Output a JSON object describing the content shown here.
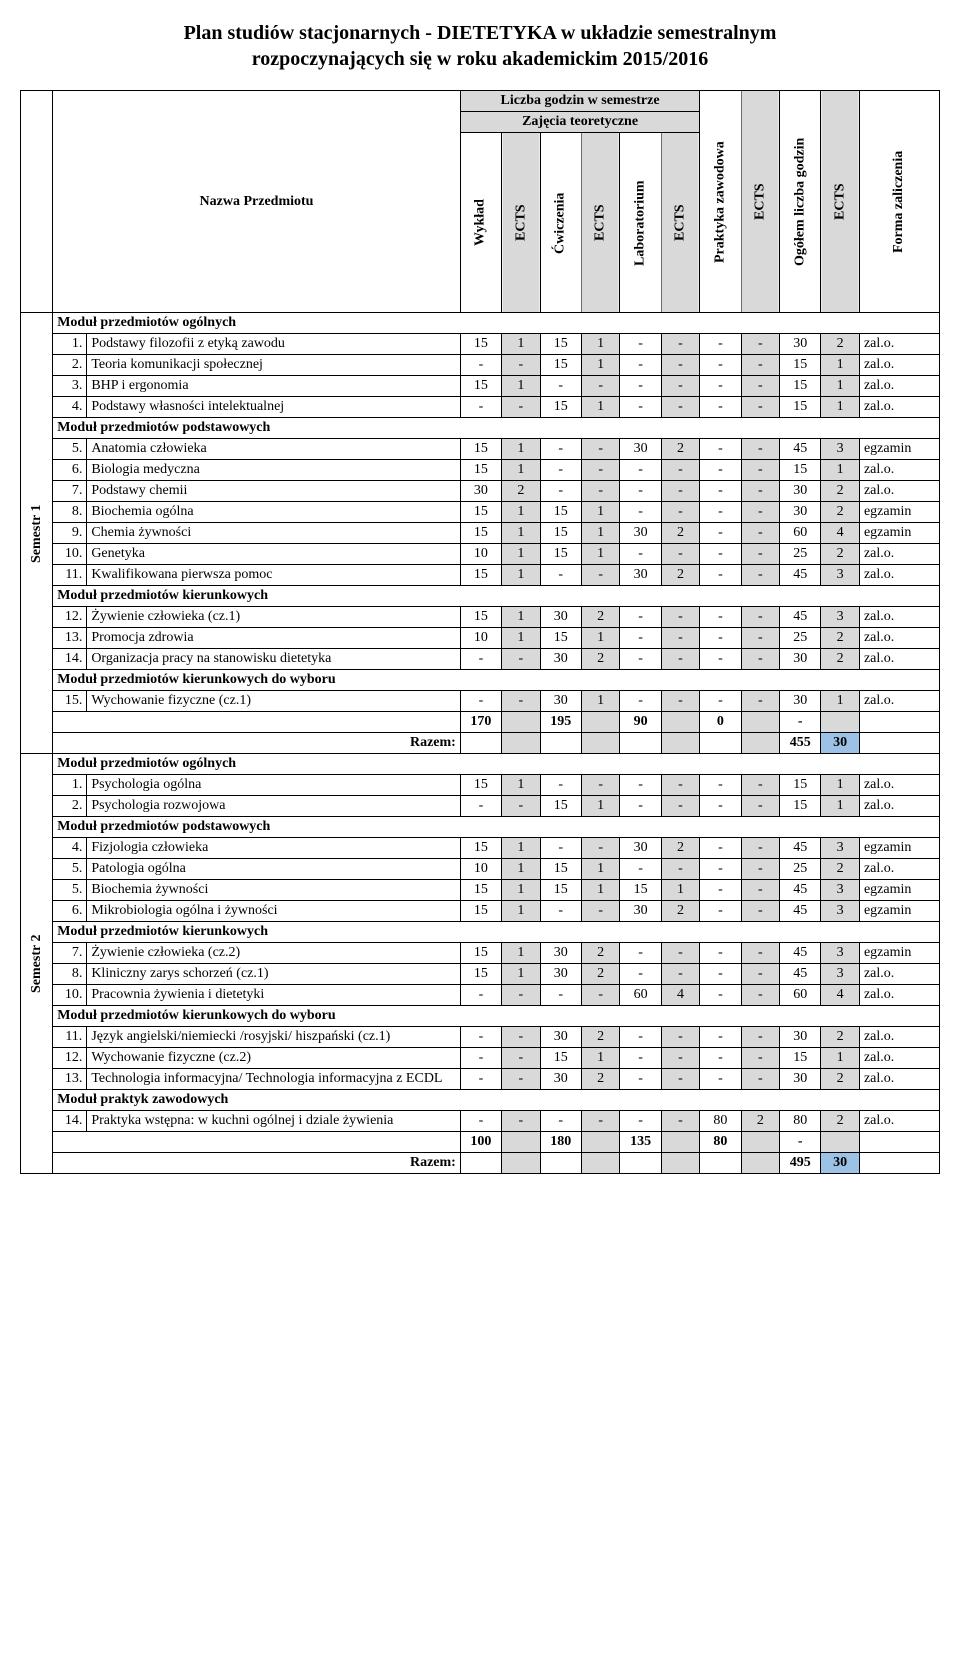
{
  "title_line1": "Plan studiów stacjonarnych - DIETETYKA w układzie semestralnym",
  "title_line2": "rozpoczynających się w roku akademickim 2015/2016",
  "headers": {
    "nazwa": "Nazwa Przedmiotu",
    "liczba_godzin": "Liczba godzin w semestrze",
    "zajecia_teor": "Zajęcia teoretyczne",
    "wyklad": "Wykład",
    "ects": "ECTS",
    "cwiczenia": "Ćwiczenia",
    "laboratorium": "Laboratorium",
    "praktyka": "Praktyka zawodowa",
    "ogolem": "Ogółem liczba godzin",
    "forma": "Forma zaliczenia"
  },
  "labels": {
    "razem": "Razem:",
    "semestr1": "Semestr 1",
    "semestr2": "Semestr 2"
  },
  "modules": {
    "ogolne": "Moduł przedmiotów ogólnych",
    "podstawowe": "Moduł przedmiotów podstawowych",
    "kierunkowe": "Moduł przedmiotów kierunkowych",
    "kier_wybor": "Moduł przedmiotów kierunkowych do wyboru",
    "praktyk": "Moduł praktyk zawodowych"
  },
  "sem1": {
    "rows": [
      {
        "n": "1.",
        "name": "Podstawy filozofii z etyką zawodu",
        "w": "15",
        "we": "1",
        "c": "15",
        "ce": "1",
        "l": "-",
        "le": "-",
        "p": "-",
        "pe": "-",
        "og": "30",
        "oe": "2",
        "f": "zal.o."
      },
      {
        "n": "2.",
        "name": "Teoria komunikacji społecznej",
        "w": "-",
        "we": "-",
        "c": "15",
        "ce": "1",
        "l": "-",
        "le": "-",
        "p": "-",
        "pe": "-",
        "og": "15",
        "oe": "1",
        "f": "zal.o."
      },
      {
        "n": "3.",
        "name": "BHP i ergonomia",
        "w": "15",
        "we": "1",
        "c": "-",
        "ce": "-",
        "l": "-",
        "le": "-",
        "p": "-",
        "pe": "-",
        "og": "15",
        "oe": "1",
        "f": "zal.o."
      },
      {
        "n": "4.",
        "name": "Podstawy własności intelektualnej",
        "w": "-",
        "we": "-",
        "c": "15",
        "ce": "1",
        "l": "-",
        "le": "-",
        "p": "-",
        "pe": "-",
        "og": "15",
        "oe": "1",
        "f": "zal.o."
      }
    ],
    "rows2": [
      {
        "n": "5.",
        "name": "Anatomia człowieka",
        "w": "15",
        "we": "1",
        "c": "-",
        "ce": "-",
        "l": "30",
        "le": "2",
        "p": "-",
        "pe": "-",
        "og": "45",
        "oe": "3",
        "f": "egzamin"
      },
      {
        "n": "6.",
        "name": "Biologia medyczna",
        "w": "15",
        "we": "1",
        "c": "-",
        "ce": "-",
        "l": "-",
        "le": "-",
        "p": "-",
        "pe": "-",
        "og": "15",
        "oe": "1",
        "f": "zal.o."
      },
      {
        "n": "7.",
        "name": "Podstawy chemii",
        "w": "30",
        "we": "2",
        "c": "-",
        "ce": "-",
        "l": "-",
        "le": "-",
        "p": "-",
        "pe": "-",
        "og": "30",
        "oe": "2",
        "f": "zal.o."
      },
      {
        "n": "8.",
        "name": "Biochemia ogólna",
        "w": "15",
        "we": "1",
        "c": "15",
        "ce": "1",
        "l": "-",
        "le": "-",
        "p": "-",
        "pe": "-",
        "og": "30",
        "oe": "2",
        "f": "egzamin"
      },
      {
        "n": "9.",
        "name": "Chemia żywności",
        "w": "15",
        "we": "1",
        "c": "15",
        "ce": "1",
        "l": "30",
        "le": "2",
        "p": "-",
        "pe": "-",
        "og": "60",
        "oe": "4",
        "f": "egzamin"
      },
      {
        "n": "10.",
        "name": "Genetyka",
        "w": "10",
        "we": "1",
        "c": "15",
        "ce": "1",
        "l": "-",
        "le": "-",
        "p": "-",
        "pe": "-",
        "og": "25",
        "oe": "2",
        "f": "zal.o."
      },
      {
        "n": "11.",
        "name": "Kwalifikowana pierwsza pomoc",
        "w": "15",
        "we": "1",
        "c": "-",
        "ce": "-",
        "l": "30",
        "le": "2",
        "p": "-",
        "pe": "-",
        "og": "45",
        "oe": "3",
        "f": "zal.o."
      }
    ],
    "rows3": [
      {
        "n": "12.",
        "name": "Żywienie człowieka (cz.1)",
        "w": "15",
        "we": "1",
        "c": "30",
        "ce": "2",
        "l": "-",
        "le": "-",
        "p": "-",
        "pe": "-",
        "og": "45",
        "oe": "3",
        "f": "zal.o."
      },
      {
        "n": "13.",
        "name": "Promocja zdrowia",
        "w": "10",
        "we": "1",
        "c": "15",
        "ce": "1",
        "l": "-",
        "le": "-",
        "p": "-",
        "pe": "-",
        "og": "25",
        "oe": "2",
        "f": "zal.o."
      },
      {
        "n": "14.",
        "name": "Organizacja pracy na stanowisku dietetyka",
        "w": "-",
        "we": "-",
        "c": "30",
        "ce": "2",
        "l": "-",
        "le": "-",
        "p": "-",
        "pe": "-",
        "og": "30",
        "oe": "2",
        "f": "zal.o."
      }
    ],
    "rows4": [
      {
        "n": "15.",
        "name": "Wychowanie fizyczne (cz.1)",
        "w": "-",
        "we": "-",
        "c": "30",
        "ce": "1",
        "l": "-",
        "le": "-",
        "p": "-",
        "pe": "-",
        "og": "30",
        "oe": "1",
        "f": "zal.o."
      }
    ],
    "subtotal": {
      "w": "170",
      "c": "195",
      "l": "90",
      "p": "0",
      "og": "-"
    },
    "razem": {
      "val": "455",
      "ects": "30"
    }
  },
  "sem2": {
    "rows1": [
      {
        "n": "1.",
        "name": "Psychologia ogólna",
        "w": "15",
        "we": "1",
        "c": "-",
        "ce": "-",
        "l": "-",
        "le": "-",
        "p": "-",
        "pe": "-",
        "og": "15",
        "oe": "1",
        "f": "zal.o."
      },
      {
        "n": "2.",
        "name": "Psychologia rozwojowa",
        "w": "-",
        "we": "-",
        "c": "15",
        "ce": "1",
        "l": "-",
        "le": "-",
        "p": "-",
        "pe": "-",
        "og": "15",
        "oe": "1",
        "f": "zal.o."
      }
    ],
    "rows2": [
      {
        "n": "4.",
        "name": "Fizjologia człowieka",
        "w": "15",
        "we": "1",
        "c": "-",
        "ce": "-",
        "l": "30",
        "le": "2",
        "p": "-",
        "pe": "-",
        "og": "45",
        "oe": "3",
        "f": "egzamin"
      },
      {
        "n": "5.",
        "name": "Patologia ogólna",
        "w": "10",
        "we": "1",
        "c": "15",
        "ce": "1",
        "l": "-",
        "le": "-",
        "p": "-",
        "pe": "-",
        "og": "25",
        "oe": "2",
        "f": "zal.o."
      },
      {
        "n": "5.",
        "name": "Biochemia żywności",
        "w": "15",
        "we": "1",
        "c": "15",
        "ce": "1",
        "l": "15",
        "le": "1",
        "p": "-",
        "pe": "-",
        "og": "45",
        "oe": "3",
        "f": "egzamin"
      },
      {
        "n": "6.",
        "name": "Mikrobiologia ogólna i żywności",
        "w": "15",
        "we": "1",
        "c": "-",
        "ce": "-",
        "l": "30",
        "le": "2",
        "p": "-",
        "pe": "-",
        "og": "45",
        "oe": "3",
        "f": "egzamin"
      }
    ],
    "rows3": [
      {
        "n": "7.",
        "name": "Żywienie człowieka (cz.2)",
        "w": "15",
        "we": "1",
        "c": "30",
        "ce": "2",
        "l": "-",
        "le": "-",
        "p": "-",
        "pe": "-",
        "og": "45",
        "oe": "3",
        "f": "egzamin"
      },
      {
        "n": "8.",
        "name": "Kliniczny zarys schorzeń (cz.1)",
        "w": "15",
        "we": "1",
        "c": "30",
        "ce": "2",
        "l": "-",
        "le": "-",
        "p": "-",
        "pe": "-",
        "og": "45",
        "oe": "3",
        "f": "zal.o."
      },
      {
        "n": "10.",
        "name": "Pracownia żywienia i dietetyki",
        "w": "-",
        "we": "-",
        "c": "-",
        "ce": "-",
        "l": "60",
        "le": "4",
        "p": "-",
        "pe": "-",
        "og": "60",
        "oe": "4",
        "f": "zal.o."
      }
    ],
    "rows4": [
      {
        "n": "11.",
        "name": "Język angielski/niemiecki /rosyjski/ hiszpański (cz.1)",
        "w": "-",
        "we": "-",
        "c": "30",
        "ce": "2",
        "l": "-",
        "le": "-",
        "p": "-",
        "pe": "-",
        "og": "30",
        "oe": "2",
        "f": "zal.o."
      },
      {
        "n": "12.",
        "name": "Wychowanie fizyczne (cz.2)",
        "w": "-",
        "we": "-",
        "c": "15",
        "ce": "1",
        "l": "-",
        "le": "-",
        "p": "-",
        "pe": "-",
        "og": "15",
        "oe": "1",
        "f": "zal.o."
      },
      {
        "n": "13.",
        "name": "Technologia informacyjna/ Technologia informacyjna z ECDL",
        "w": "-",
        "we": "-",
        "c": "30",
        "ce": "2",
        "l": "-",
        "le": "-",
        "p": "-",
        "pe": "-",
        "og": "30",
        "oe": "2",
        "f": "zal.o."
      }
    ],
    "rows5": [
      {
        "n": "14.",
        "name": "Praktyka wstępna: w kuchni ogólnej i dziale żywienia",
        "w": "-",
        "we": "-",
        "c": "-",
        "ce": "-",
        "l": "-",
        "le": "-",
        "p": "80",
        "pe": "2",
        "og": "80",
        "oe": "2",
        "f": "zal.o."
      }
    ],
    "subtotal": {
      "w": "100",
      "c": "180",
      "l": "135",
      "p": "80",
      "og": "-"
    },
    "razem": {
      "val": "495",
      "ects": "30"
    }
  }
}
